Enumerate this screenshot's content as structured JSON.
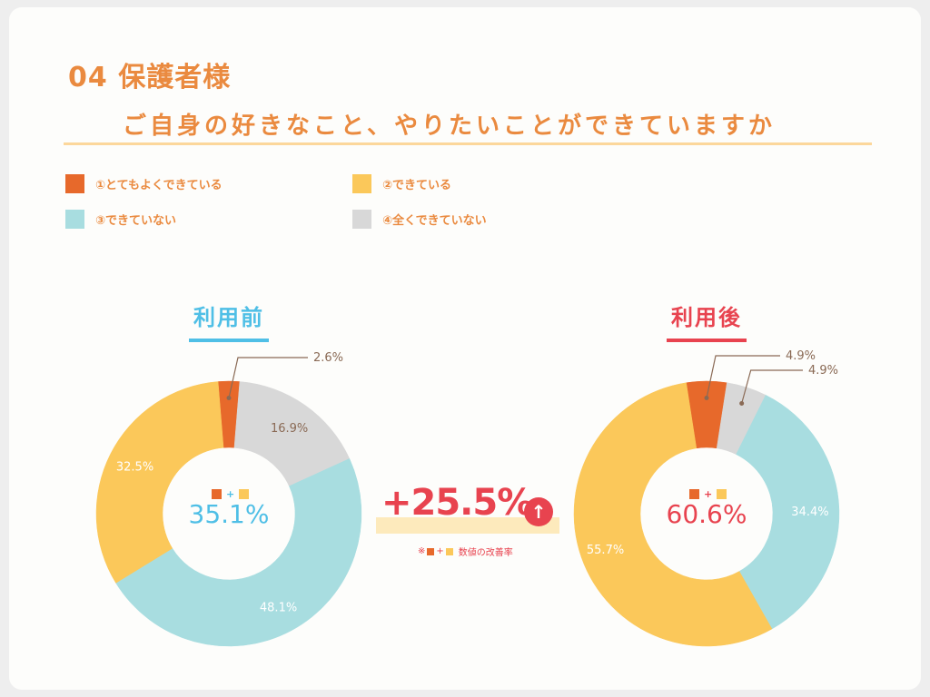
{
  "header": {
    "number_title": "04 保護者様",
    "question": "ご自身の好きなこと、やりたいことができていますか"
  },
  "legend": [
    {
      "label": "①とてもよくできている",
      "color": "#e7692b"
    },
    {
      "label": "②できている",
      "color": "#fbc85a"
    },
    {
      "label": "③できていない",
      "color": "#a8dde0"
    },
    {
      "label": "④全くできていない",
      "color": "#d8d8d8"
    }
  ],
  "chart_data": [
    {
      "type": "pie",
      "title": "利用前",
      "title_color": "#4fbfe6",
      "categories": [
        "①とてもよくできている",
        "②できている",
        "③できていない",
        "④全くできていない"
      ],
      "values": [
        2.6,
        32.5,
        48.1,
        16.9
      ],
      "labels": [
        "2.6%",
        "32.5%",
        "48.1%",
        "16.9%"
      ],
      "center_total": "35.1%"
    },
    {
      "type": "pie",
      "title": "利用後",
      "title_color": "#e8434f",
      "categories": [
        "①とてもよくできている",
        "②できている",
        "③できていない",
        "④全くできていない"
      ],
      "values": [
        4.9,
        55.7,
        34.4,
        4.9
      ],
      "labels": [
        "4.9%",
        "55.7%",
        "34.4%",
        "4.9%"
      ],
      "center_total": "60.6%"
    }
  ],
  "improvement": {
    "value": "+25.5%",
    "arrow": "↑",
    "note_prefix": "※",
    "note_plus": "+",
    "note_suffix": "数値の改善率"
  },
  "colors": {
    "orange": "#e7692b",
    "yellow": "#fbc85a",
    "teal": "#a8dde0",
    "gray": "#d8d8d8",
    "accent_title": "#ea8a3f",
    "red": "#e8434f",
    "blue": "#4fbfe6",
    "label_brown": "#8a6a55"
  }
}
